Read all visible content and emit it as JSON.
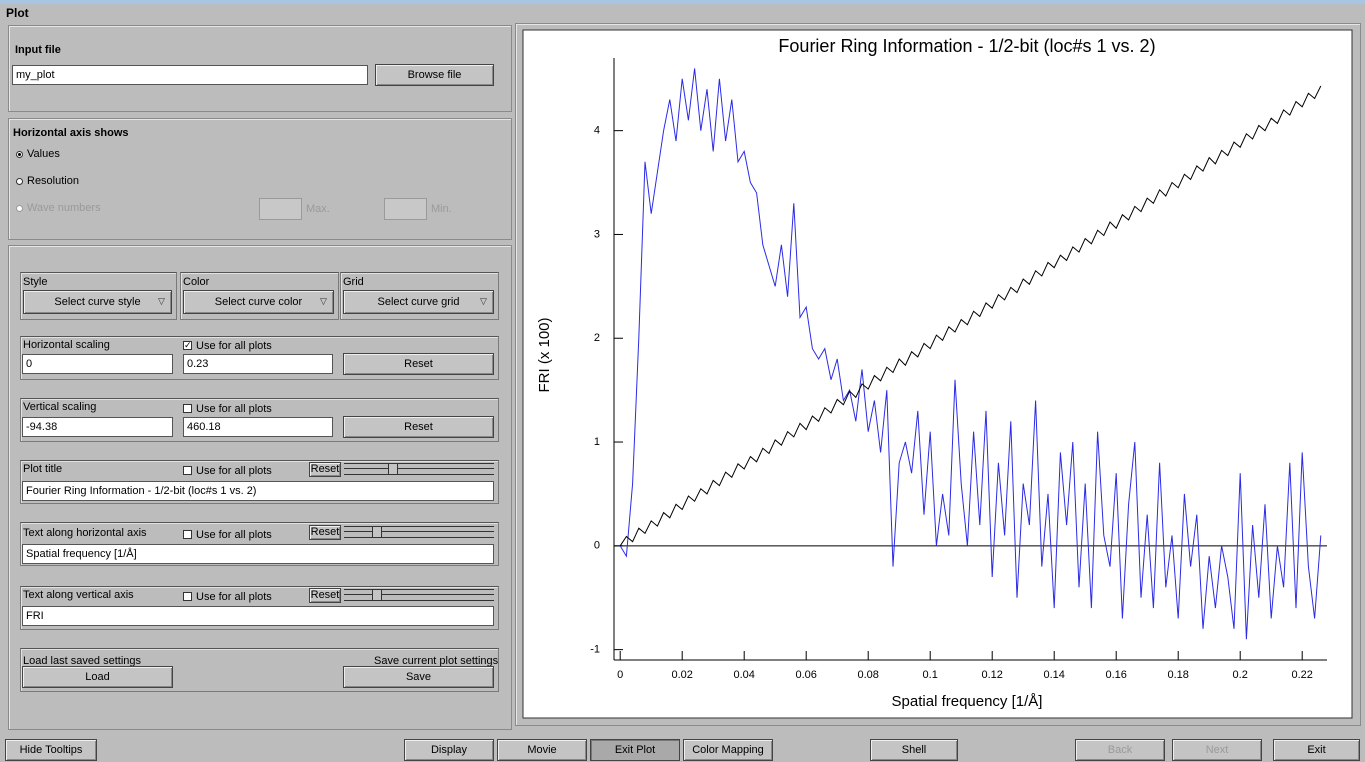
{
  "window_title": "Plot",
  "input_file": {
    "label": "Input file",
    "value": "my_plot",
    "browse": "Browse file"
  },
  "horizontal_axis": {
    "title": "Horizontal axis shows",
    "options": [
      "Values",
      "Resolution",
      "Wave numbers"
    ],
    "max_label": "Max.",
    "min_label": "Min."
  },
  "curve": {
    "style_label": "Style",
    "style_button": "Select curve style",
    "color_label": "Color",
    "color_button": "Select curve color",
    "grid_label": "Grid",
    "grid_button": "Select curve grid"
  },
  "horizontal_scaling": {
    "label": "Horizontal scaling",
    "checkbox": "Use for all plots",
    "min": "0",
    "max": "0.23",
    "reset": "Reset"
  },
  "vertical_scaling": {
    "label": "Vertical scaling",
    "checkbox": "Use for all plots",
    "min": "-94.38",
    "max": "460.18",
    "reset": "Reset"
  },
  "plot_title": {
    "label": "Plot title",
    "checkbox": "Use for all plots",
    "reset": "Reset",
    "value": "Fourier Ring Information - 1/2-bit (loc#s 1 vs. 2)"
  },
  "text_horizontal": {
    "label": "Text along horizontal axis",
    "checkbox": "Use for all plots",
    "reset": "Reset",
    "value": "Spatial frequency [1/Å]"
  },
  "text_vertical": {
    "label": "Text along vertical axis",
    "checkbox": "Use for all plots",
    "reset": "Reset",
    "value": "FRI"
  },
  "settings": {
    "load_label": "Load last saved settings",
    "load": "Load",
    "save_label": "Save current plot settings",
    "save": "Save"
  },
  "bottom_buttons": [
    "Hide Tooltips",
    "Display",
    "Movie",
    "Exit Plot",
    "Color Mapping",
    "Shell",
    "Back",
    "Next",
    "Exit"
  ],
  "chart_data": {
    "type": "line",
    "title": "Fourier Ring Information - 1/2-bit (loc#s 1 vs. 2)",
    "x_label": "Spatial frequency [1/Å]",
    "y_label": "FRI (x 100)",
    "x": [
      0,
      0.002,
      0.004,
      0.006,
      0.008,
      0.01,
      0.012,
      0.014,
      0.016,
      0.018,
      0.02,
      0.022,
      0.024,
      0.026,
      0.028,
      0.03,
      0.032,
      0.034,
      0.036,
      0.038,
      0.04,
      0.042,
      0.044,
      0.046,
      0.048,
      0.05,
      0.052,
      0.054,
      0.056,
      0.058,
      0.06,
      0.062,
      0.064,
      0.066,
      0.068,
      0.07,
      0.072,
      0.074,
      0.076,
      0.078,
      0.08,
      0.082,
      0.084,
      0.086,
      0.088,
      0.09,
      0.092,
      0.094,
      0.096,
      0.098,
      0.1,
      0.102,
      0.104,
      0.106,
      0.108,
      0.11,
      0.112,
      0.114,
      0.116,
      0.118,
      0.12,
      0.122,
      0.124,
      0.126,
      0.128,
      0.13,
      0.132,
      0.134,
      0.136,
      0.138,
      0.14,
      0.142,
      0.144,
      0.146,
      0.148,
      0.15,
      0.152,
      0.154,
      0.156,
      0.158,
      0.16,
      0.162,
      0.164,
      0.166,
      0.168,
      0.17,
      0.172,
      0.174,
      0.176,
      0.178,
      0.18,
      0.182,
      0.184,
      0.186,
      0.188,
      0.19,
      0.192,
      0.194,
      0.196,
      0.198,
      0.2,
      0.202,
      0.204,
      0.206,
      0.208,
      0.21,
      0.212,
      0.214,
      0.216,
      0.218,
      0.22,
      0.222,
      0.224,
      0.226
    ],
    "series": [
      {
        "color": "#2b2be6",
        "values": [
          0.0,
          -0.1,
          0.6,
          2.0,
          3.7,
          3.2,
          3.6,
          4.0,
          4.3,
          3.9,
          4.5,
          4.1,
          4.6,
          4.0,
          4.4,
          3.8,
          4.5,
          3.9,
          4.3,
          3.7,
          3.8,
          3.5,
          3.4,
          2.9,
          2.7,
          2.5,
          2.9,
          2.4,
          3.3,
          2.2,
          2.3,
          1.9,
          1.8,
          1.9,
          1.6,
          1.8,
          1.4,
          1.5,
          1.2,
          1.7,
          1.1,
          1.4,
          0.9,
          1.5,
          -0.2,
          0.8,
          1.0,
          0.7,
          1.3,
          0.3,
          1.1,
          0.0,
          0.5,
          0.1,
          1.6,
          0.6,
          0.0,
          1.1,
          0.2,
          1.3,
          -0.3,
          0.8,
          0.1,
          1.2,
          -0.5,
          0.6,
          0.2,
          1.4,
          -0.2,
          0.5,
          -0.6,
          0.9,
          0.2,
          1.0,
          -0.4,
          0.6,
          -0.6,
          1.1,
          0.1,
          -0.2,
          0.7,
          -0.7,
          0.4,
          1.0,
          -0.5,
          0.3,
          -0.6,
          0.8,
          -0.4,
          0.1,
          -0.7,
          0.5,
          -0.2,
          0.3,
          -0.8,
          -0.1,
          -0.6,
          0.0,
          -0.3,
          -0.8,
          0.7,
          -0.9,
          0.2,
          -0.5,
          0.4,
          -0.7,
          0.0,
          -0.4,
          0.8,
          -0.6,
          0.9,
          -0.2,
          -0.7,
          0.1
        ]
      },
      {
        "color": "#000000",
        "values": [
          0.0,
          0.09,
          0.04,
          0.17,
          0.12,
          0.24,
          0.19,
          0.32,
          0.27,
          0.4,
          0.35,
          0.48,
          0.43,
          0.55,
          0.5,
          0.63,
          0.58,
          0.71,
          0.66,
          0.79,
          0.74,
          0.86,
          0.81,
          0.94,
          0.89,
          1.02,
          0.97,
          1.1,
          1.05,
          1.18,
          1.12,
          1.25,
          1.2,
          1.33,
          1.28,
          1.41,
          1.36,
          1.49,
          1.43,
          1.56,
          1.51,
          1.64,
          1.59,
          1.72,
          1.67,
          1.8,
          1.74,
          1.87,
          1.82,
          1.95,
          1.9,
          2.03,
          1.98,
          2.11,
          2.06,
          2.18,
          2.13,
          2.26,
          2.21,
          2.34,
          2.29,
          2.42,
          2.37,
          2.49,
          2.44,
          2.57,
          2.52,
          2.65,
          2.6,
          2.73,
          2.68,
          2.8,
          2.75,
          2.88,
          2.83,
          2.96,
          2.91,
          3.04,
          2.99,
          3.12,
          3.06,
          3.19,
          3.14,
          3.27,
          3.22,
          3.35,
          3.3,
          3.43,
          3.37,
          3.5,
          3.45,
          3.58,
          3.53,
          3.66,
          3.61,
          3.74,
          3.68,
          3.81,
          3.76,
          3.89,
          3.84,
          3.97,
          3.92,
          4.05,
          4.0,
          4.12,
          4.07,
          4.2,
          4.15,
          4.28,
          4.23,
          4.36,
          4.31,
          4.43
        ]
      }
    ],
    "xlim": [
      -0.002,
      0.228
    ],
    "ylim": [
      -1.1,
      4.7
    ],
    "xticks": [
      0,
      0.02,
      0.04,
      0.06,
      0.08,
      0.1,
      0.12,
      0.14,
      0.16,
      0.18,
      0.2,
      0.22
    ],
    "yticks": [
      -1,
      0,
      1,
      2,
      3,
      4
    ]
  }
}
